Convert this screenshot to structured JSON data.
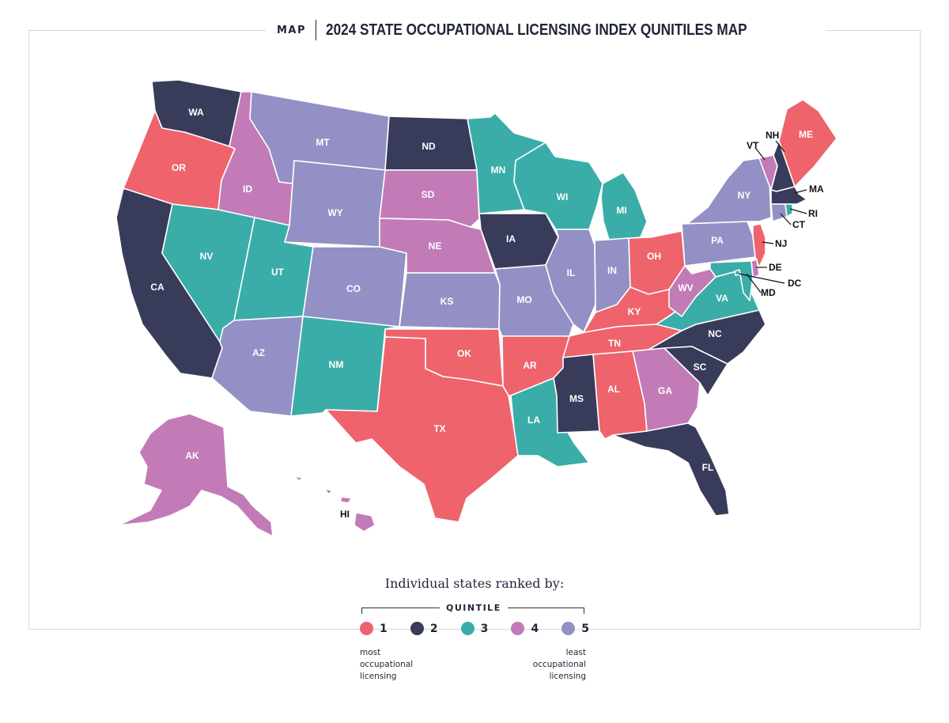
{
  "header": {
    "tag": "MAP",
    "title": "2024 STATE OCCUPATIONAL LICENSING INDEX QUNITILES MAP"
  },
  "colors": {
    "q1": "#ee636c",
    "q2": "#383c5a",
    "q3": "#3aada8",
    "q4": "#c27bb7",
    "q5": "#9390c5"
  },
  "states": {
    "WA": {
      "label": "WA",
      "quintile": 2
    },
    "OR": {
      "label": "OR",
      "quintile": 1
    },
    "CA": {
      "label": "CA",
      "quintile": 2
    },
    "NV": {
      "label": "NV",
      "quintile": 3
    },
    "ID": {
      "label": "ID",
      "quintile": 4
    },
    "MT": {
      "label": "MT",
      "quintile": 5
    },
    "WY": {
      "label": "WY",
      "quintile": 5
    },
    "UT": {
      "label": "UT",
      "quintile": 3
    },
    "AZ": {
      "label": "AZ",
      "quintile": 5
    },
    "CO": {
      "label": "CO",
      "quintile": 5
    },
    "NM": {
      "label": "NM",
      "quintile": 3
    },
    "ND": {
      "label": "ND",
      "quintile": 2
    },
    "SD": {
      "label": "SD",
      "quintile": 4
    },
    "NE": {
      "label": "NE",
      "quintile": 4
    },
    "KS": {
      "label": "KS",
      "quintile": 5
    },
    "OK": {
      "label": "OK",
      "quintile": 1
    },
    "TX": {
      "label": "TX",
      "quintile": 1
    },
    "MN": {
      "label": "MN",
      "quintile": 3
    },
    "IA": {
      "label": "IA",
      "quintile": 2
    },
    "MO": {
      "label": "MO",
      "quintile": 5
    },
    "AR": {
      "label": "AR",
      "quintile": 1
    },
    "LA": {
      "label": "LA",
      "quintile": 3
    },
    "WI": {
      "label": "WI",
      "quintile": 3
    },
    "IL": {
      "label": "IL",
      "quintile": 5
    },
    "MI": {
      "label": "MI",
      "quintile": 3
    },
    "IN": {
      "label": "IN",
      "quintile": 5
    },
    "OH": {
      "label": "OH",
      "quintile": 1
    },
    "KY": {
      "label": "KY",
      "quintile": 1
    },
    "TN": {
      "label": "TN",
      "quintile": 1
    },
    "MS": {
      "label": "MS",
      "quintile": 2
    },
    "AL": {
      "label": "AL",
      "quintile": 1
    },
    "GA": {
      "label": "GA",
      "quintile": 4
    },
    "FL": {
      "label": "FL",
      "quintile": 2
    },
    "SC": {
      "label": "SC",
      "quintile": 2
    },
    "NC": {
      "label": "NC",
      "quintile": 2
    },
    "VA": {
      "label": "VA",
      "quintile": 3
    },
    "WV": {
      "label": "WV",
      "quintile": 4
    },
    "PA": {
      "label": "PA",
      "quintile": 5
    },
    "NY": {
      "label": "NY",
      "quintile": 5
    },
    "VT": {
      "label": "VT",
      "quintile": 4
    },
    "NH": {
      "label": "NH",
      "quintile": 2
    },
    "ME": {
      "label": "ME",
      "quintile": 1
    },
    "MA": {
      "label": "MA",
      "quintile": 2
    },
    "RI": {
      "label": "RI",
      "quintile": 3
    },
    "CT": {
      "label": "CT",
      "quintile": 5
    },
    "NJ": {
      "label": "NJ",
      "quintile": 1
    },
    "DE": {
      "label": "DE",
      "quintile": 4
    },
    "MD": {
      "label": "MD",
      "quintile": 3
    },
    "DC": {
      "label": "DC",
      "quintile": 3
    },
    "AK": {
      "label": "AK",
      "quintile": 4
    },
    "HI": {
      "label": "HI",
      "quintile": 4
    }
  },
  "legend": {
    "heading": "Individual states ranked by:",
    "quintile_label": "QUINTILE",
    "items": [
      "1",
      "2",
      "3",
      "4",
      "5"
    ],
    "note_left_1": "most",
    "note_left_2": "occupational",
    "note_left_3": "licensing",
    "note_right_1": "least",
    "note_right_2": "occupational",
    "note_right_3": "licensing"
  }
}
